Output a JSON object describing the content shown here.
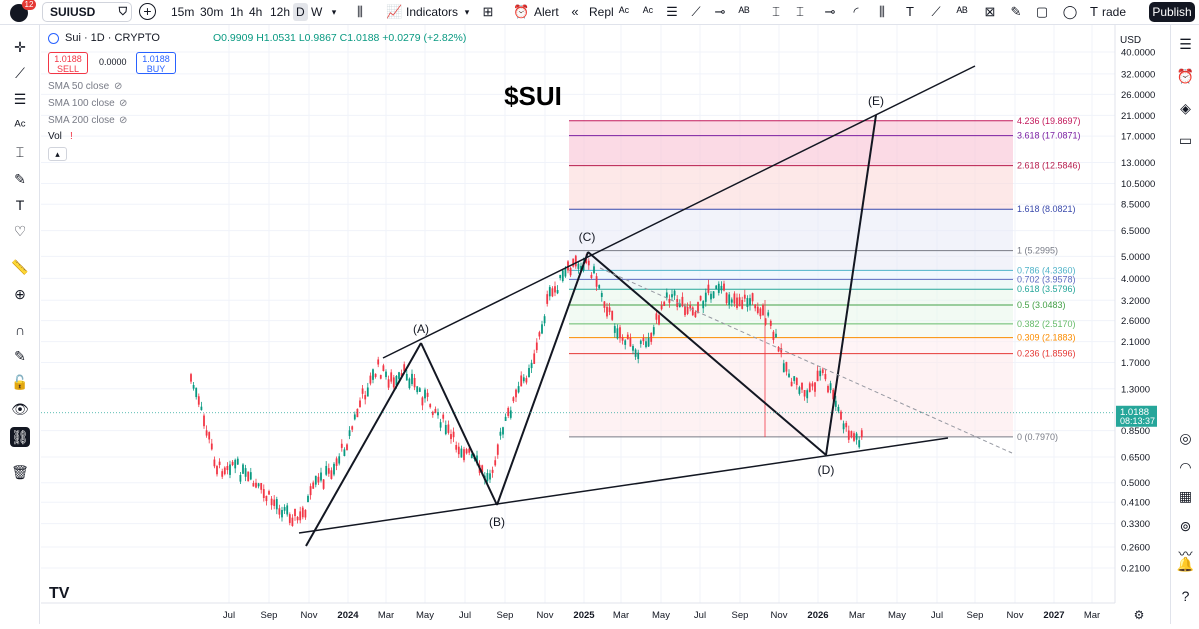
{
  "topbar": {
    "notification_count": "12",
    "symbol": "SUIUSD",
    "intervals": [
      "15m",
      "30m",
      "1h",
      "4h",
      "12h",
      "D",
      "W"
    ],
    "active_interval": "D",
    "indicators_label": "Indicators",
    "alert_label": "Alert",
    "replay_label": "Repla",
    "trade_label": "rade",
    "publish_label": "Publish"
  },
  "legend": {
    "title": "Sui · 1D · CRYPTO",
    "ohlc": "O0.9909 H1.0531 L0.9867 C1.0188 +0.0279 (+2.82%)",
    "sell_price": "1.0188",
    "sell_label": "SELL",
    "spread": "0.0000",
    "buy_price": "1.0188",
    "buy_label": "BUY",
    "indicators": [
      "SMA 50 close",
      "SMA 100 close",
      "SMA 200 close",
      "Vol"
    ],
    "accent": "#2962ff"
  },
  "price_axis": {
    "currency": "USD",
    "current_price": "1.0188",
    "countdown": "08:13:37",
    "current_color": "#26a69a"
  },
  "chart_data": {
    "type": "candlestick",
    "title": "$SUI",
    "scale": "log",
    "ylim": [
      0.22,
      42
    ],
    "y_ticks": [
      "40.0000",
      "32.0000",
      "26.0000",
      "21.0000",
      "17.0000",
      "13.0000",
      "10.5000",
      "8.5000",
      "6.5000",
      "5.0000",
      "4.0000",
      "3.2000",
      "2.6000",
      "2.1000",
      "1.7000",
      "1.3000",
      "0.8500",
      "0.6500",
      "0.5000",
      "0.4100",
      "0.3300",
      "0.2600",
      "0.2100"
    ],
    "x_ticks": [
      "Jul",
      "Sep",
      "Nov",
      "2024",
      "Mar",
      "May",
      "Jul",
      "Sep",
      "Nov",
      "2025",
      "Mar",
      "May",
      "Jul",
      "Sep",
      "Nov",
      "2026",
      "Mar",
      "May",
      "Jul",
      "Sep",
      "Nov",
      "2027",
      "Mar"
    ],
    "wave_labels": [
      "(A)",
      "(B)",
      "(C)",
      "(D)",
      "(E)"
    ],
    "fib_levels": [
      {
        "label": "4.236 (19.8697)",
        "value": 19.8697,
        "color": "#c2185b"
      },
      {
        "label": "3.618 (17.0871)",
        "value": 17.0871,
        "color": "#7b1fa2"
      },
      {
        "label": "2.618 (12.5846)",
        "value": 12.5846,
        "color": "#b71c4c"
      },
      {
        "label": "1.618 (8.0821)",
        "value": 8.0821,
        "color": "#3949ab"
      },
      {
        "label": "1 (5.2995)",
        "value": 5.2995,
        "color": "#787b86"
      },
      {
        "label": "0.786 (4.3360)",
        "value": 4.336,
        "color": "#4fb3c8"
      },
      {
        "label": "0.702 (3.9578)",
        "value": 3.9578,
        "color": "#5c6bc0"
      },
      {
        "label": "0.618 (3.5796)",
        "value": 3.5796,
        "color": "#26a69a"
      },
      {
        "label": "0.5 (3.0483)",
        "value": 3.0483,
        "color": "#43a047"
      },
      {
        "label": "0.382 (2.5170)",
        "value": 2.517,
        "color": "#66bb6a"
      },
      {
        "label": "0.309 (2.1883)",
        "value": 2.1883,
        "color": "#fb8c00"
      },
      {
        "label": "0.236 (1.8596)",
        "value": 1.8596,
        "color": "#e53935"
      },
      {
        "label": "0 (0.7970)",
        "value": 0.797,
        "color": "#787b86"
      }
    ]
  }
}
